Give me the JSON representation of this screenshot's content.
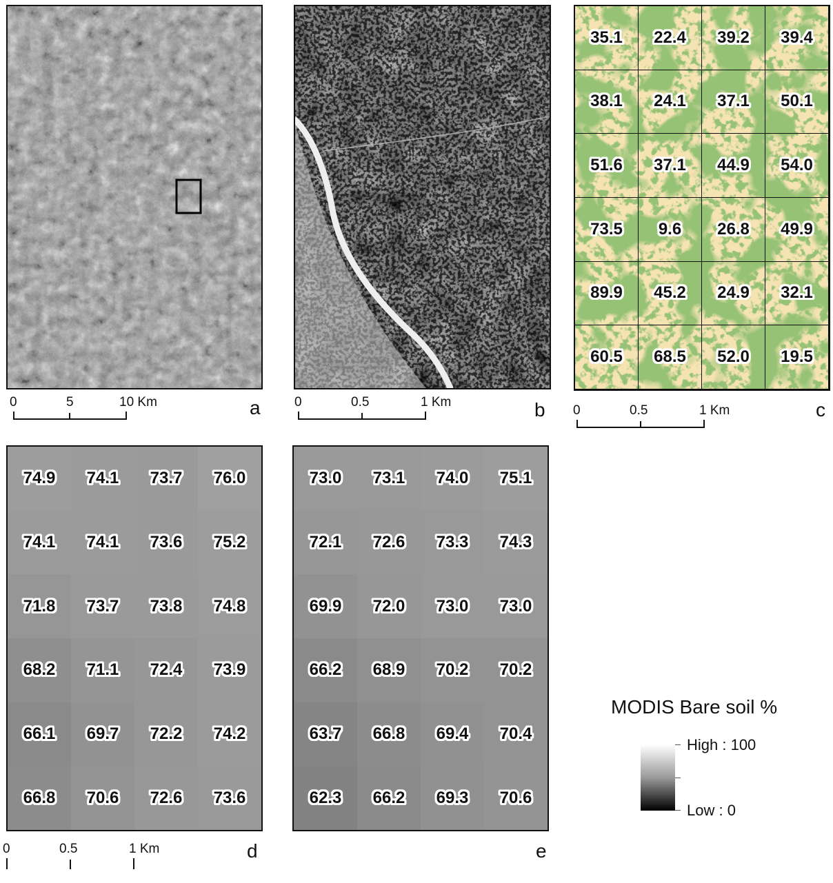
{
  "panels": {
    "a": {
      "letter": "a"
    },
    "b": {
      "letter": "b"
    },
    "c": {
      "letter": "c",
      "colors": {
        "vegetation": "#4e8a2e",
        "bare_soil": "#f6e3b4"
      },
      "values": [
        [
          "35.1",
          "22.4",
          "39.2",
          "39.4"
        ],
        [
          "38.1",
          "24.1",
          "37.1",
          "50.1"
        ],
        [
          "51.6",
          "37.1",
          "44.9",
          "54.0"
        ],
        [
          "73.5",
          "9.6",
          "26.8",
          "49.9"
        ],
        [
          "89.9",
          "45.2",
          "24.9",
          "32.1"
        ],
        [
          "60.5",
          "68.5",
          "52.0",
          "19.5"
        ]
      ]
    },
    "d": {
      "letter": "d",
      "values": [
        [
          "74.9",
          "74.1",
          "73.7",
          "76.0"
        ],
        [
          "74.1",
          "74.1",
          "73.6",
          "75.2"
        ],
        [
          "71.8",
          "73.7",
          "73.8",
          "74.8"
        ],
        [
          "68.2",
          "71.1",
          "72.4",
          "73.9"
        ],
        [
          "66.1",
          "69.7",
          "72.2",
          "74.2"
        ],
        [
          "66.8",
          "70.6",
          "72.6",
          "73.6"
        ]
      ]
    },
    "e": {
      "letter": "e",
      "values": [
        [
          "73.0",
          "73.1",
          "74.0",
          "75.1"
        ],
        [
          "72.1",
          "72.6",
          "73.3",
          "74.3"
        ],
        [
          "69.9",
          "72.0",
          "73.0",
          "73.0"
        ],
        [
          "66.2",
          "68.9",
          "70.2",
          "70.2"
        ],
        [
          "63.7",
          "66.8",
          "69.4",
          "70.4"
        ],
        [
          "62.3",
          "66.2",
          "69.3",
          "70.6"
        ]
      ]
    }
  },
  "scalebars": {
    "a": {
      "ticks": [
        "0",
        "5",
        "10 Km"
      ]
    },
    "b": {
      "ticks": [
        "0",
        "0.5",
        "1 Km"
      ]
    },
    "c": {
      "ticks": [
        "0",
        "0.5",
        "1 Km"
      ]
    },
    "d": {
      "ticks": [
        "0",
        "0.5",
        "1 Km"
      ]
    }
  },
  "legend": {
    "title": "MODIS Bare soil %",
    "high_label": "High : 100",
    "low_label": "Low : 0",
    "ramp_colors": [
      "#ffffff",
      "#000000"
    ]
  }
}
